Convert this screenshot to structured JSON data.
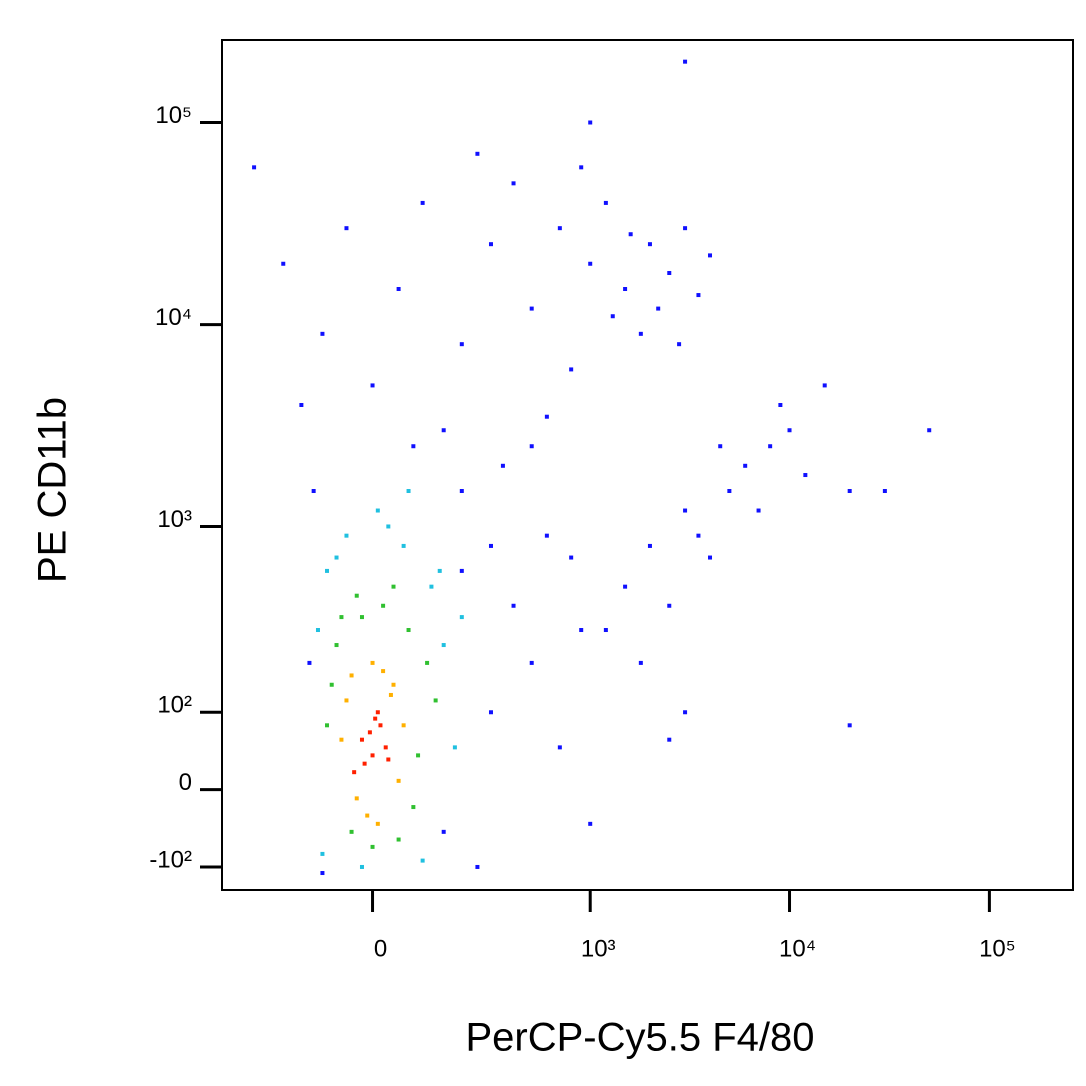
{
  "chart_data": {
    "type": "scatter",
    "x_label": "PerCP-Cy5.5  F4/80",
    "y_label": "PE  CD11b",
    "xscale": "biexponential",
    "yscale": "biexponential",
    "xlim": [
      -450,
      262000
    ],
    "ylim": [
      -141,
      256000
    ],
    "xticks": [
      0,
      {
        "value": 1000,
        "label": "10³"
      },
      {
        "value": 10000,
        "label": "10⁴"
      },
      {
        "value": 100000,
        "label": "10⁵"
      }
    ],
    "yticks": [
      {
        "value": -100,
        "label": "-10²"
      },
      0,
      {
        "value": 100,
        "label": "10²"
      },
      {
        "value": 1000,
        "label": "10³"
      },
      {
        "value": 10000,
        "label": "10⁴"
      },
      {
        "value": 100000,
        "label": "10⁵"
      }
    ],
    "series": [
      {
        "color": "#1010ff",
        "x": [
          -300,
          -200,
          -100,
          0,
          50,
          100,
          200,
          300,
          500,
          700,
          1000,
          1500,
          2000,
          2500,
          3000,
          1200,
          800,
          400,
          600,
          1800,
          2200,
          4000,
          3500,
          150,
          250,
          -150,
          1000,
          3000,
          80,
          350,
          -50,
          900,
          1600,
          2800,
          1300,
          1500,
          2000,
          3000,
          4000,
          5000,
          6000,
          8000,
          10000,
          12000,
          7000,
          2500,
          3500,
          1200,
          4500,
          9000,
          20000,
          50000,
          30000,
          15000,
          800,
          1800,
          2500,
          200,
          300,
          400,
          500,
          300,
          700,
          150,
          250,
          -120,
          -130,
          -100,
          600,
          900,
          500,
          200,
          1000,
          20000,
          3000
        ],
        "y": [
          60000,
          20000,
          9000,
          5000,
          15000,
          40000,
          8000,
          25000,
          12000,
          30000,
          20000,
          15000,
          25000,
          18000,
          30000,
          40000,
          6000,
          50000,
          3500,
          9000,
          12000,
          22000,
          14000,
          3000,
          70000,
          4000,
          100000,
          200000,
          2500,
          2000,
          30000,
          60000,
          28000,
          8000,
          11000,
          500,
          800,
          1200,
          700,
          1500,
          2000,
          2500,
          3000,
          1800,
          1200,
          400,
          900,
          300,
          2500,
          4000,
          1500,
          3000,
          1500,
          5000,
          700,
          200,
          60,
          1500,
          800,
          400,
          200,
          100,
          50,
          -50,
          -100,
          1500,
          200,
          -110,
          900,
          300,
          2500,
          600,
          -40,
          80,
          100
        ]
      },
      {
        "color": "#20c0e0",
        "x": [
          -90,
          120,
          -100,
          150,
          60,
          -50,
          30,
          180,
          -110,
          100,
          10,
          -70,
          140,
          70,
          -20,
          200
        ],
        "y": [
          600,
          500,
          -80,
          250,
          800,
          900,
          1000,
          50,
          300,
          -90,
          1200,
          700,
          600,
          1500,
          -100,
          350
        ]
      },
      {
        "color": "#30c030",
        "x": [
          -70,
          70,
          -40,
          90,
          -80,
          110,
          20,
          -20,
          50,
          -60,
          80,
          0,
          -90,
          40,
          130,
          -30
        ],
        "y": [
          250,
          300,
          -50,
          40,
          150,
          200,
          400,
          350,
          -60,
          350,
          -20,
          -70,
          80,
          500,
          120,
          450
        ]
      },
      {
        "color": "#ffb000",
        "x": [
          -50,
          40,
          -30,
          20,
          60,
          -10,
          -60,
          50,
          0,
          35,
          -40,
          10
        ],
        "y": [
          120,
          150,
          -10,
          180,
          80,
          -30,
          60,
          10,
          200,
          130,
          170,
          -40
        ]
      },
      {
        "color": "#ff2000",
        "x": [
          -20,
          0,
          15,
          -35,
          10,
          25,
          -5,
          -15,
          30,
          5
        ],
        "y": [
          60,
          40,
          80,
          20,
          100,
          50,
          70,
          30,
          35,
          90
        ]
      }
    ]
  }
}
